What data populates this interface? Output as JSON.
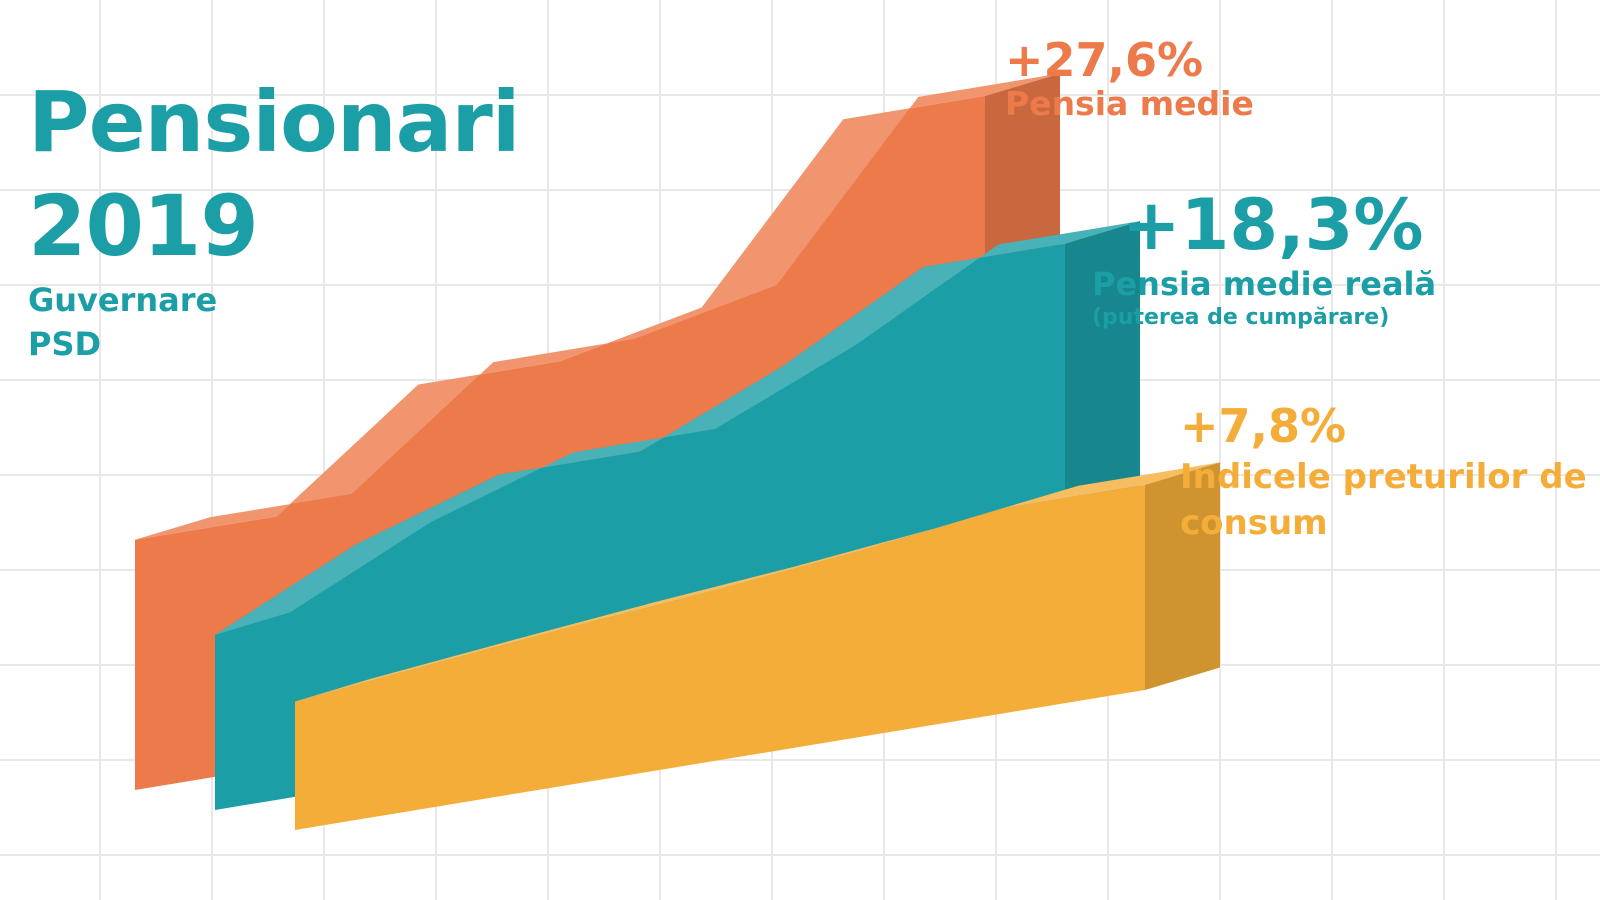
{
  "header": {
    "title_line1": "Pensionari",
    "title_line2": "2019",
    "subtitle_line1": "Guvernare",
    "subtitle_line2": "PSD"
  },
  "chart_data": {
    "type": "area",
    "title": "Pensionari 2019",
    "subtitle": "Guvernare PSD",
    "grid": true,
    "legend_placement": "right",
    "series": [
      {
        "label": "Pensia medie",
        "value": "+27,6%",
        "change_pct": 27.6,
        "color": "#ec7a4a"
      },
      {
        "label": "Pensia medie reală",
        "note": "(puterea de cumpărare)",
        "value": "+18,3%",
        "change_pct": 18.3,
        "color": "#1b9ea6"
      },
      {
        "label": "Indicele preturilor de consum",
        "value": "+7,8%",
        "change_pct": 7.8,
        "color": "#f4ad39"
      }
    ]
  }
}
